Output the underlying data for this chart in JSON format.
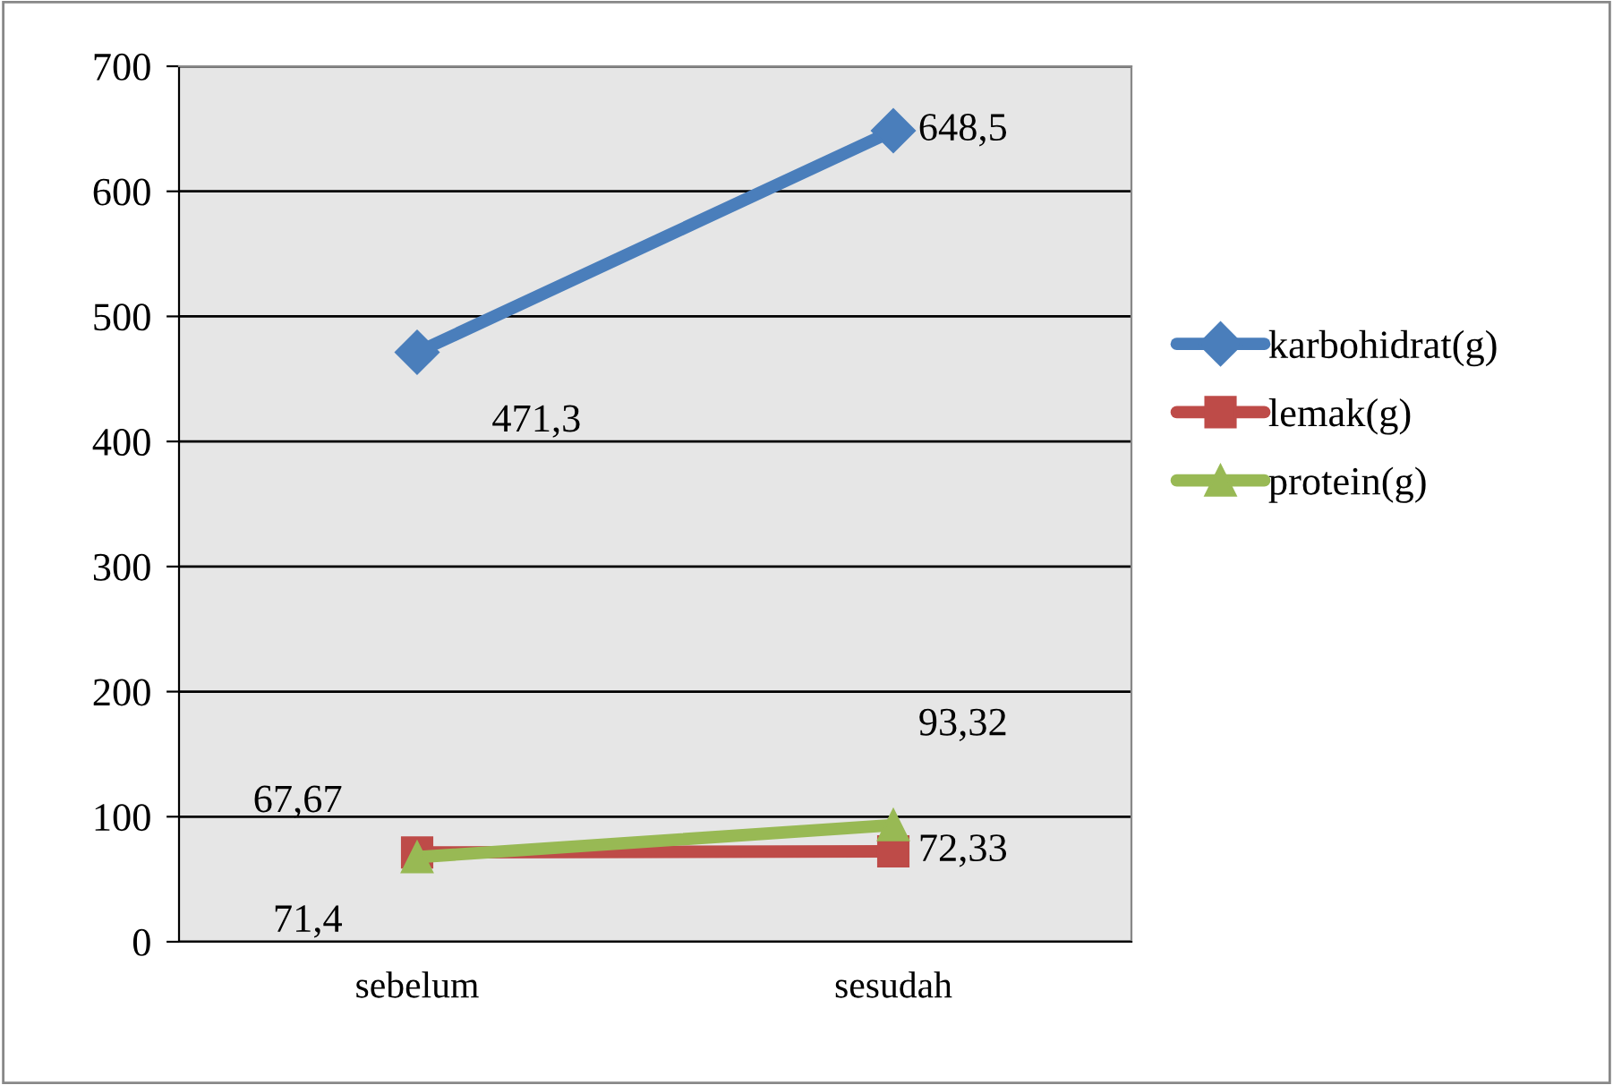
{
  "chart_data": {
    "type": "line",
    "categories": [
      "sebelum",
      "sesudah"
    ],
    "series": [
      {
        "name": "karbohidrat(g)",
        "color": "#4a7ebb",
        "marker": "diamond",
        "values": [
          471.3,
          648.5
        ],
        "value_labels": [
          "471,3",
          "648,5"
        ]
      },
      {
        "name": "lemak(g)",
        "color": "#be4b48",
        "marker": "square",
        "values": [
          71.4,
          72.33
        ],
        "value_labels": [
          "71,4",
          "72,33"
        ]
      },
      {
        "name": "protein(g)",
        "color": "#98b954",
        "marker": "triangle",
        "values": [
          67.67,
          93.32
        ],
        "value_labels": [
          "67,67",
          "93,32"
        ]
      }
    ],
    "ylim": [
      0,
      700
    ],
    "yticks": [
      0,
      100,
      200,
      300,
      400,
      500,
      600,
      700
    ],
    "grid": "y",
    "legend": "right",
    "line_style": "solid"
  }
}
